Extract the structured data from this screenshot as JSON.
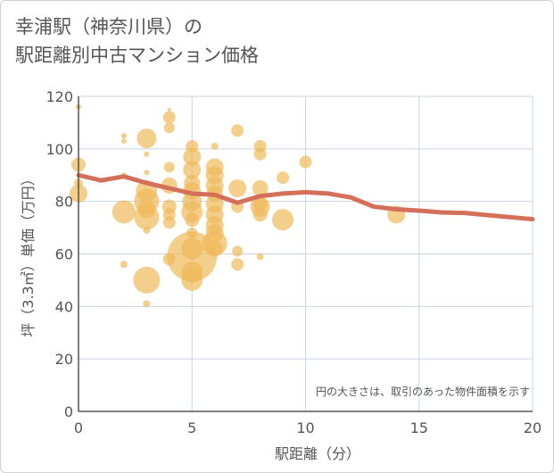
{
  "title_line1": "幸浦駅（神奈川県）の",
  "title_line2": "駅距離別中古マンション価格",
  "chart_data": {
    "type": "scatter",
    "xlabel": "駅距離（分）",
    "ylabel": "坪（3.3㎡）単価（万円）",
    "xlim": [
      0,
      20
    ],
    "ylim": [
      0,
      120
    ],
    "xticks": [
      "0",
      "5",
      "10",
      "15",
      "20"
    ],
    "yticks": [
      "0",
      "20",
      "40",
      "60",
      "80",
      "100",
      "120"
    ],
    "grid": true,
    "annotation": "円の大きさは、取引のあった物件面積を示す",
    "colors": {
      "bubble": "#f0b95a",
      "line": "#d4705a",
      "grid": "#c8d4e6"
    },
    "bubbles": [
      {
        "x": 0,
        "y": 116,
        "s": 3
      },
      {
        "x": 0,
        "y": 94,
        "s": 8
      },
      {
        "x": 0,
        "y": 87,
        "s": 5
      },
      {
        "x": 0,
        "y": 83,
        "s": 10
      },
      {
        "x": 2,
        "y": 105,
        "s": 3
      },
      {
        "x": 2,
        "y": 103,
        "s": 3
      },
      {
        "x": 2,
        "y": 90,
        "s": 3
      },
      {
        "x": 2,
        "y": 76,
        "s": 13
      },
      {
        "x": 2,
        "y": 56,
        "s": 4
      },
      {
        "x": 3,
        "y": 104,
        "s": 11
      },
      {
        "x": 3,
        "y": 98,
        "s": 3
      },
      {
        "x": 3,
        "y": 91,
        "s": 3
      },
      {
        "x": 3,
        "y": 84,
        "s": 12
      },
      {
        "x": 3,
        "y": 80,
        "s": 14
      },
      {
        "x": 3,
        "y": 77,
        "s": 10
      },
      {
        "x": 3,
        "y": 74,
        "s": 14
      },
      {
        "x": 3,
        "y": 69,
        "s": 4
      },
      {
        "x": 3,
        "y": 50,
        "s": 15
      },
      {
        "x": 3,
        "y": 41,
        "s": 4
      },
      {
        "x": 4,
        "y": 115,
        "s": 2
      },
      {
        "x": 4,
        "y": 112,
        "s": 7
      },
      {
        "x": 4,
        "y": 108,
        "s": 6
      },
      {
        "x": 4,
        "y": 93,
        "s": 6
      },
      {
        "x": 4,
        "y": 86,
        "s": 9
      },
      {
        "x": 4,
        "y": 78,
        "s": 8
      },
      {
        "x": 4,
        "y": 75,
        "s": 7
      },
      {
        "x": 4,
        "y": 72,
        "s": 7
      },
      {
        "x": 4,
        "y": 58,
        "s": 7
      },
      {
        "x": 5,
        "y": 101,
        "s": 7
      },
      {
        "x": 5,
        "y": 97,
        "s": 10
      },
      {
        "x": 5,
        "y": 92,
        "s": 10
      },
      {
        "x": 5,
        "y": 87,
        "s": 9
      },
      {
        "x": 5,
        "y": 84,
        "s": 10
      },
      {
        "x": 5,
        "y": 80,
        "s": 11
      },
      {
        "x": 5,
        "y": 76,
        "s": 12
      },
      {
        "x": 5,
        "y": 73,
        "s": 8
      },
      {
        "x": 5,
        "y": 68,
        "s": 6
      },
      {
        "x": 5,
        "y": 62,
        "s": 12
      },
      {
        "x": 5,
        "y": 59,
        "s": 28
      },
      {
        "x": 5,
        "y": 53,
        "s": 12
      },
      {
        "x": 5,
        "y": 50,
        "s": 12
      },
      {
        "x": 6,
        "y": 101,
        "s": 4
      },
      {
        "x": 6,
        "y": 93,
        "s": 10
      },
      {
        "x": 6,
        "y": 90,
        "s": 10
      },
      {
        "x": 6,
        "y": 86,
        "s": 10
      },
      {
        "x": 6,
        "y": 83,
        "s": 9
      },
      {
        "x": 6,
        "y": 79,
        "s": 10
      },
      {
        "x": 6,
        "y": 75,
        "s": 10
      },
      {
        "x": 6,
        "y": 71,
        "s": 10
      },
      {
        "x": 6,
        "y": 68,
        "s": 10
      },
      {
        "x": 6,
        "y": 64,
        "s": 14
      },
      {
        "x": 6,
        "y": 62,
        "s": 9
      },
      {
        "x": 7,
        "y": 107,
        "s": 7
      },
      {
        "x": 7,
        "y": 85,
        "s": 10
      },
      {
        "x": 7,
        "y": 78,
        "s": 7
      },
      {
        "x": 7,
        "y": 61,
        "s": 6
      },
      {
        "x": 7,
        "y": 56,
        "s": 7
      },
      {
        "x": 8,
        "y": 101,
        "s": 7
      },
      {
        "x": 8,
        "y": 98,
        "s": 7
      },
      {
        "x": 8,
        "y": 85,
        "s": 9
      },
      {
        "x": 8,
        "y": 79,
        "s": 8
      },
      {
        "x": 8,
        "y": 78,
        "s": 11
      },
      {
        "x": 8,
        "y": 75,
        "s": 8
      },
      {
        "x": 8,
        "y": 59,
        "s": 4
      },
      {
        "x": 9,
        "y": 89,
        "s": 7
      },
      {
        "x": 9,
        "y": 73,
        "s": 12
      },
      {
        "x": 10,
        "y": 95,
        "s": 7
      },
      {
        "x": 14,
        "y": 75,
        "s": 10
      }
    ],
    "trend": {
      "x": [
        0,
        1,
        2,
        3,
        4,
        5,
        6,
        7,
        8,
        9,
        10,
        11,
        12,
        13,
        14,
        15,
        16,
        17,
        18,
        19,
        20
      ],
      "y": [
        90,
        88,
        89.5,
        87,
        85,
        83,
        82.5,
        79.5,
        82,
        83,
        83.5,
        83,
        81.5,
        78,
        77,
        76.5,
        75.8,
        75.6,
        74.8,
        74,
        73.2
      ]
    }
  }
}
